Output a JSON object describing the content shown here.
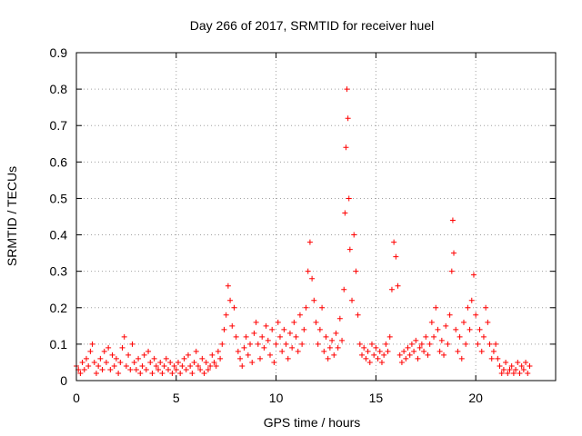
{
  "chart_data": {
    "type": "scatter",
    "title": "Day 266 of 2017, SRMTID for receiver huel",
    "xlabel": "GPS time / hours",
    "ylabel": "SRMTID / TECUs",
    "xlim": [
      0,
      24
    ],
    "ylim": [
      0,
      0.9
    ],
    "xticks": [
      0,
      5,
      10,
      15,
      20
    ],
    "xtick_labels": [
      "0",
      "5",
      "10",
      "15",
      "20"
    ],
    "yticks": [
      0,
      0.1,
      0.2,
      0.3,
      0.4,
      0.5,
      0.6,
      0.7,
      0.8,
      0.9
    ],
    "ytick_labels": [
      "0",
      "0.1",
      "0.2",
      "0.3",
      "0.4",
      "0.5",
      "0.6",
      "0.7",
      "0.8",
      "0.9"
    ],
    "grid": true,
    "marker": "+",
    "marker_color": "#ff0000",
    "series": [
      {
        "name": "SRMTID",
        "color": "#ff0000",
        "points": [
          [
            0.0,
            0.04
          ],
          [
            0.1,
            0.03
          ],
          [
            0.2,
            0.02
          ],
          [
            0.3,
            0.05
          ],
          [
            0.4,
            0.03
          ],
          [
            0.5,
            0.06
          ],
          [
            0.6,
            0.04
          ],
          [
            0.7,
            0.08
          ],
          [
            0.8,
            0.1
          ],
          [
            0.9,
            0.05
          ],
          [
            1.0,
            0.02
          ],
          [
            1.1,
            0.04
          ],
          [
            1.2,
            0.06
          ],
          [
            1.3,
            0.03
          ],
          [
            1.4,
            0.08
          ],
          [
            1.5,
            0.05
          ],
          [
            1.6,
            0.09
          ],
          [
            1.7,
            0.03
          ],
          [
            1.8,
            0.07
          ],
          [
            1.9,
            0.04
          ],
          [
            2.0,
            0.06
          ],
          [
            2.1,
            0.02
          ],
          [
            2.2,
            0.05
          ],
          [
            2.3,
            0.09
          ],
          [
            2.4,
            0.12
          ],
          [
            2.5,
            0.04
          ],
          [
            2.6,
            0.07
          ],
          [
            2.7,
            0.03
          ],
          [
            2.8,
            0.1
          ],
          [
            2.9,
            0.05
          ],
          [
            3.0,
            0.03
          ],
          [
            3.1,
            0.06
          ],
          [
            3.2,
            0.02
          ],
          [
            3.3,
            0.04
          ],
          [
            3.4,
            0.07
          ],
          [
            3.5,
            0.03
          ],
          [
            3.6,
            0.08
          ],
          [
            3.7,
            0.05
          ],
          [
            3.8,
            0.02
          ],
          [
            3.9,
            0.06
          ],
          [
            4.0,
            0.04
          ],
          [
            4.1,
            0.03
          ],
          [
            4.2,
            0.05
          ],
          [
            4.3,
            0.02
          ],
          [
            4.4,
            0.04
          ],
          [
            4.5,
            0.06
          ],
          [
            4.6,
            0.03
          ],
          [
            4.7,
            0.05
          ],
          [
            4.8,
            0.02
          ],
          [
            4.9,
            0.04
          ],
          [
            5.0,
            0.03
          ],
          [
            5.1,
            0.05
          ],
          [
            5.2,
            0.02
          ],
          [
            5.3,
            0.04
          ],
          [
            5.4,
            0.06
          ],
          [
            5.5,
            0.03
          ],
          [
            5.6,
            0.07
          ],
          [
            5.7,
            0.04
          ],
          [
            5.8,
            0.02
          ],
          [
            5.9,
            0.05
          ],
          [
            6.0,
            0.08
          ],
          [
            6.1,
            0.04
          ],
          [
            6.2,
            0.03
          ],
          [
            6.3,
            0.06
          ],
          [
            6.4,
            0.02
          ],
          [
            6.5,
            0.05
          ],
          [
            6.6,
            0.03
          ],
          [
            6.7,
            0.04
          ],
          [
            6.8,
            0.07
          ],
          [
            6.9,
            0.05
          ],
          [
            7.0,
            0.04
          ],
          [
            7.1,
            0.08
          ],
          [
            7.2,
            0.06
          ],
          [
            7.3,
            0.1
          ],
          [
            7.4,
            0.14
          ],
          [
            7.5,
            0.18
          ],
          [
            7.6,
            0.26
          ],
          [
            7.7,
            0.22
          ],
          [
            7.8,
            0.15
          ],
          [
            7.9,
            0.2
          ],
          [
            8.0,
            0.12
          ],
          [
            8.1,
            0.08
          ],
          [
            8.2,
            0.06
          ],
          [
            8.3,
            0.04
          ],
          [
            8.4,
            0.09
          ],
          [
            8.5,
            0.12
          ],
          [
            8.6,
            0.07
          ],
          [
            8.7,
            0.1
          ],
          [
            8.8,
            0.05
          ],
          [
            8.9,
            0.13
          ],
          [
            9.0,
            0.16
          ],
          [
            9.1,
            0.1
          ],
          [
            9.2,
            0.06
          ],
          [
            9.3,
            0.12
          ],
          [
            9.4,
            0.09
          ],
          [
            9.5,
            0.15
          ],
          [
            9.6,
            0.11
          ],
          [
            9.7,
            0.07
          ],
          [
            9.8,
            0.14
          ],
          [
            9.9,
            0.05
          ],
          [
            10.0,
            0.1
          ],
          [
            10.1,
            0.16
          ],
          [
            10.2,
            0.12
          ],
          [
            10.3,
            0.08
          ],
          [
            10.4,
            0.14
          ],
          [
            10.5,
            0.1
          ],
          [
            10.6,
            0.06
          ],
          [
            10.7,
            0.13
          ],
          [
            10.8,
            0.09
          ],
          [
            10.9,
            0.16
          ],
          [
            11.0,
            0.12
          ],
          [
            11.1,
            0.08
          ],
          [
            11.2,
            0.18
          ],
          [
            11.3,
            0.1
          ],
          [
            11.4,
            0.14
          ],
          [
            11.5,
            0.2
          ],
          [
            11.6,
            0.3
          ],
          [
            11.7,
            0.38
          ],
          [
            11.8,
            0.28
          ],
          [
            11.9,
            0.22
          ],
          [
            12.0,
            0.16
          ],
          [
            12.1,
            0.1
          ],
          [
            12.2,
            0.14
          ],
          [
            12.3,
            0.2
          ],
          [
            12.4,
            0.08
          ],
          [
            12.5,
            0.12
          ],
          [
            12.6,
            0.06
          ],
          [
            12.7,
            0.09
          ],
          [
            12.8,
            0.11
          ],
          [
            12.9,
            0.07
          ],
          [
            13.0,
            0.13
          ],
          [
            13.1,
            0.09
          ],
          [
            13.2,
            0.17
          ],
          [
            13.3,
            0.11
          ],
          [
            13.4,
            0.25
          ],
          [
            13.45,
            0.46
          ],
          [
            13.5,
            0.64
          ],
          [
            13.55,
            0.8
          ],
          [
            13.6,
            0.72
          ],
          [
            13.65,
            0.5
          ],
          [
            13.7,
            0.36
          ],
          [
            13.8,
            0.22
          ],
          [
            13.9,
            0.4
          ],
          [
            14.0,
            0.3
          ],
          [
            14.1,
            0.18
          ],
          [
            14.2,
            0.1
          ],
          [
            14.3,
            0.07
          ],
          [
            14.4,
            0.09
          ],
          [
            14.5,
            0.06
          ],
          [
            14.6,
            0.08
          ],
          [
            14.7,
            0.05
          ],
          [
            14.8,
            0.1
          ],
          [
            14.9,
            0.07
          ],
          [
            15.0,
            0.09
          ],
          [
            15.1,
            0.06
          ],
          [
            15.2,
            0.08
          ],
          [
            15.3,
            0.05
          ],
          [
            15.4,
            0.07
          ],
          [
            15.5,
            0.1
          ],
          [
            15.6,
            0.08
          ],
          [
            15.7,
            0.12
          ],
          [
            15.8,
            0.25
          ],
          [
            15.9,
            0.38
          ],
          [
            16.0,
            0.34
          ],
          [
            16.1,
            0.26
          ],
          [
            16.2,
            0.07
          ],
          [
            16.3,
            0.05
          ],
          [
            16.4,
            0.08
          ],
          [
            16.5,
            0.06
          ],
          [
            16.6,
            0.09
          ],
          [
            16.7,
            0.07
          ],
          [
            16.8,
            0.1
          ],
          [
            16.9,
            0.08
          ],
          [
            17.0,
            0.11
          ],
          [
            17.1,
            0.06
          ],
          [
            17.2,
            0.09
          ],
          [
            17.3,
            0.1
          ],
          [
            17.4,
            0.08
          ],
          [
            17.5,
            0.12
          ],
          [
            17.6,
            0.07
          ],
          [
            17.7,
            0.1
          ],
          [
            17.8,
            0.16
          ],
          [
            17.9,
            0.12
          ],
          [
            18.0,
            0.2
          ],
          [
            18.1,
            0.14
          ],
          [
            18.2,
            0.08
          ],
          [
            18.3,
            0.11
          ],
          [
            18.4,
            0.07
          ],
          [
            18.5,
            0.15
          ],
          [
            18.6,
            0.1
          ],
          [
            18.7,
            0.18
          ],
          [
            18.8,
            0.3
          ],
          [
            18.85,
            0.44
          ],
          [
            18.9,
            0.35
          ],
          [
            19.0,
            0.14
          ],
          [
            19.1,
            0.08
          ],
          [
            19.2,
            0.12
          ],
          [
            19.3,
            0.06
          ],
          [
            19.4,
            0.16
          ],
          [
            19.5,
            0.1
          ],
          [
            19.6,
            0.2
          ],
          [
            19.7,
            0.14
          ],
          [
            19.8,
            0.22
          ],
          [
            19.9,
            0.29
          ],
          [
            20.0,
            0.18
          ],
          [
            20.1,
            0.1
          ],
          [
            20.2,
            0.14
          ],
          [
            20.3,
            0.08
          ],
          [
            20.4,
            0.12
          ],
          [
            20.5,
            0.2
          ],
          [
            20.6,
            0.16
          ],
          [
            20.7,
            0.1
          ],
          [
            20.8,
            0.06
          ],
          [
            20.9,
            0.08
          ],
          [
            21.0,
            0.1
          ],
          [
            21.1,
            0.06
          ],
          [
            21.2,
            0.04
          ],
          [
            21.3,
            0.02
          ],
          [
            21.4,
            0.03
          ],
          [
            21.5,
            0.05
          ],
          [
            21.6,
            0.02
          ],
          [
            21.7,
            0.03
          ],
          [
            21.8,
            0.04
          ],
          [
            21.9,
            0.02
          ],
          [
            22.0,
            0.03
          ],
          [
            22.1,
            0.05
          ],
          [
            22.2,
            0.02
          ],
          [
            22.3,
            0.04
          ],
          [
            22.4,
            0.03
          ],
          [
            22.5,
            0.05
          ],
          [
            22.6,
            0.02
          ],
          [
            22.7,
            0.04
          ]
        ]
      }
    ]
  }
}
